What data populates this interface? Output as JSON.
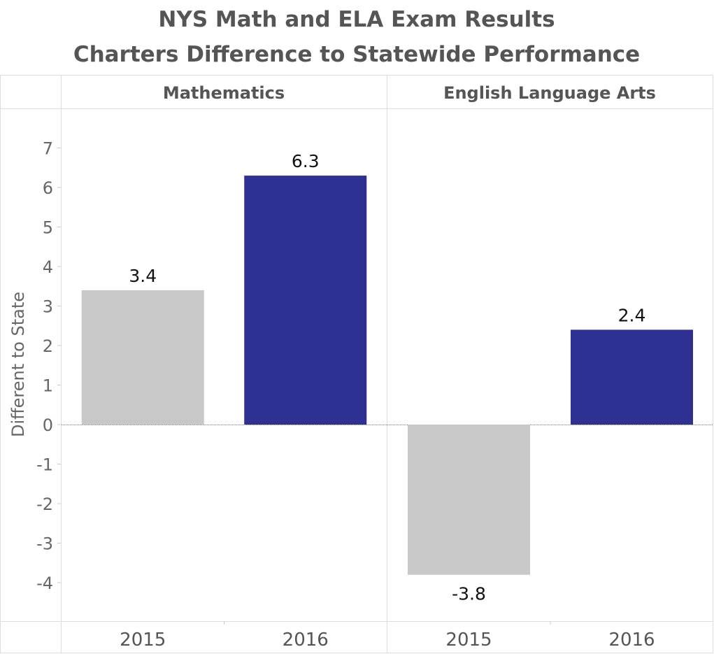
{
  "title_lines": [
    "NYS Math and ELA Exam Results",
    "Charters Difference to Statewide Performance"
  ],
  "chart_data": {
    "type": "bar",
    "title": "NYS Math and ELA Exam Results",
    "subtitle": "Charters Difference to Statewide Performance",
    "ylabel": "Different to State",
    "ylim": [
      -5,
      7.7
    ],
    "yticks": [
      7,
      6,
      5,
      4,
      3,
      2,
      1,
      0,
      -1,
      -2,
      -3,
      -4
    ],
    "yticks_text": [
      "7",
      "6",
      "5",
      "4",
      "3",
      "2",
      "1",
      "0",
      "-1",
      "-2",
      "-3",
      "-4"
    ],
    "panels": [
      {
        "name": "Mathematics",
        "categories": [
          "2015",
          "2016"
        ],
        "values": [
          3.4,
          6.3
        ],
        "labels": [
          "3.4",
          "6.3"
        ],
        "colors": [
          "#c8c8c8",
          "#2e3192"
        ]
      },
      {
        "name": "English Language Arts",
        "categories": [
          "2015",
          "2016"
        ],
        "values": [
          -3.8,
          2.4
        ],
        "labels": [
          "-3.8",
          "2.4"
        ],
        "colors": [
          "#c8c8c8",
          "#2e3192"
        ]
      }
    ]
  }
}
